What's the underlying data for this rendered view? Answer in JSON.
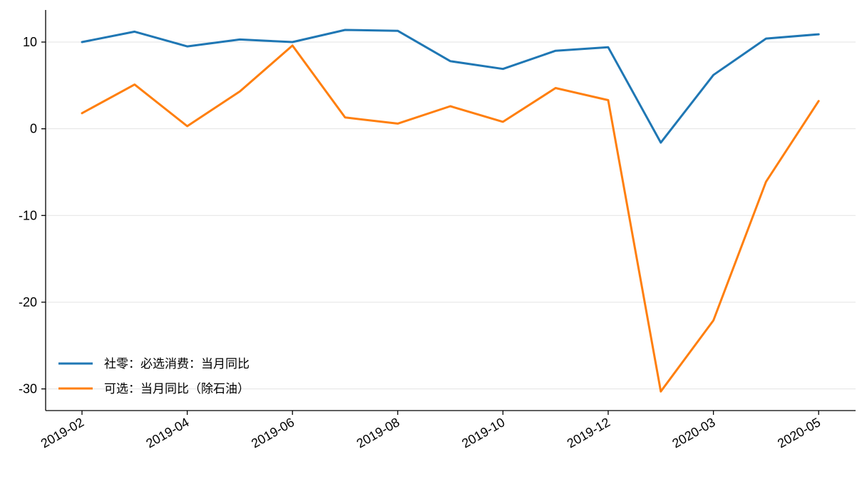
{
  "chart_data": {
    "type": "line",
    "title": "",
    "xlabel": "",
    "ylabel": "",
    "x": [
      "2019-02",
      "2019-03",
      "2019-04",
      "2019-05",
      "2019-06",
      "2019-07",
      "2019-08",
      "2019-09",
      "2019-10",
      "2019-11",
      "2019-12",
      "2020-02",
      "2020-03",
      "2020-04",
      "2020-05"
    ],
    "x_tick_labels": [
      "2019-02",
      "2019-04",
      "2019-06",
      "2019-08",
      "2019-10",
      "2019-12",
      "2020-03",
      "2020-05"
    ],
    "x_tick_values": [
      "2019-02",
      "2019-04",
      "2019-06",
      "2019-08",
      "2019-10",
      "2019-12",
      "2020-03",
      "2020-05"
    ],
    "y_ticks": [
      10,
      0,
      -10,
      -20,
      -30
    ],
    "y_tick_labels": [
      "10",
      "0",
      "-10",
      "-20",
      "-30"
    ],
    "ylim": [
      -32.5,
      13.7
    ],
    "grid": "horizontal",
    "legend_position": "lower-left",
    "series": [
      {
        "name": "社零：必选消费：当月同比",
        "color": "#1f77b4",
        "values": [
          10.0,
          11.2,
          9.5,
          10.3,
          10.0,
          11.4,
          11.3,
          7.8,
          6.9,
          9.0,
          9.4,
          -1.6,
          6.2,
          10.4,
          10.9
        ]
      },
      {
        "name": "可选：当月同比（除石油）",
        "color": "#ff7f0e",
        "values": [
          1.8,
          5.1,
          0.3,
          4.3,
          9.6,
          1.3,
          0.6,
          2.6,
          0.8,
          4.7,
          3.3,
          -30.3,
          -22.1,
          -6.1,
          3.2
        ]
      }
    ]
  }
}
